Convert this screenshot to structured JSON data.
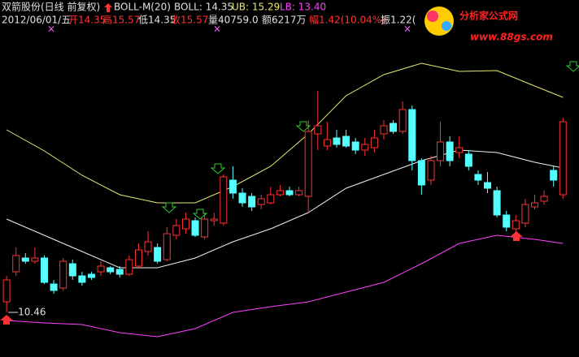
{
  "header": {
    "row1": [
      {
        "text": "双箭股份(日线 前复权)",
        "color": "#e0e0e0"
      },
      {
        "text": "BOLL-M(20)",
        "color": "#e0e0e0"
      },
      {
        "text": "BOLL: 14.35",
        "color": "#e0e0e0"
      },
      {
        "text": "UB: 15.29",
        "color": "#e8e870"
      },
      {
        "text": "LB: 13.40",
        "color": "#ff40ff"
      }
    ],
    "row2": [
      {
        "text": "2012/06/01/五",
        "color": "#e0e0e0"
      },
      {
        "text": "开14.35",
        "color": "#ff3232"
      },
      {
        "text": "高15.57",
        "color": "#ff3232"
      },
      {
        "text": "低14.35",
        "color": "#e0e0e0"
      },
      {
        "text": "收15.57",
        "color": "#ff3232"
      },
      {
        "text": "量40759.0",
        "color": "#e0e0e0"
      },
      {
        "text": "额6217万",
        "color": "#e0e0e0"
      },
      {
        "text": "幅1.42(10.04%)",
        "color": "#ff3232"
      },
      {
        "text": "振1.22(",
        "color": "#e0e0e0"
      }
    ]
  },
  "watermark": {
    "title": "分析家公式网",
    "url": "www.88gs.com"
  },
  "chart_data": {
    "type": "candlestick",
    "open": [
      10.72,
      11.46,
      11.8,
      11.72,
      11.8,
      11.16,
      11.06,
      11.66,
      11.36,
      11.4,
      11.46,
      11.56,
      11.52,
      11.4,
      11.6,
      11.96,
      12.06,
      11.76,
      12.36,
      12.52,
      12.72,
      12.32,
      12.72,
      12.66,
      13.72,
      13.4,
      13.32,
      13.12,
      13.16,
      13.36,
      13.46,
      13.36,
      13.32,
      14.86,
      14.56,
      14.76,
      14.8,
      14.66,
      14.46,
      14.52,
      14.86,
      15.12,
      14.92,
      15.46,
      14.2,
      13.72,
      14.2,
      14.66,
      14.4,
      14.36,
      13.86,
      13.66,
      13.46,
      12.86,
      12.52,
      12.66,
      13.06,
      13.2,
      13.96,
      13.36
    ],
    "high": [
      11.36,
      12.06,
      11.92,
      12.06,
      11.86,
      11.26,
      11.8,
      11.76,
      11.46,
      11.46,
      11.72,
      11.6,
      11.6,
      11.86,
      12.16,
      12.46,
      12.16,
      12.56,
      12.76,
      12.92,
      12.8,
      12.92,
      12.92,
      13.86,
      14.06,
      13.52,
      13.4,
      13.36,
      13.56,
      13.6,
      13.56,
      13.56,
      15.2,
      15.92,
      15.16,
      14.96,
      14.96,
      14.76,
      14.76,
      14.96,
      15.2,
      15.2,
      15.66,
      15.56,
      14.26,
      14.32,
      15.16,
      14.8,
      14.8,
      14.46,
      13.96,
      13.92,
      13.56,
      12.96,
      12.86,
      13.26,
      13.36,
      13.46,
      14.06,
      15.26
    ],
    "low": [
      10.46,
      11.36,
      11.66,
      11.66,
      11.16,
      10.92,
      11.0,
      11.26,
      11.12,
      11.26,
      11.36,
      11.4,
      11.32,
      11.36,
      11.56,
      11.86,
      11.66,
      11.72,
      12.26,
      12.4,
      12.32,
      12.26,
      12.6,
      12.6,
      13.26,
      13.06,
      12.96,
      13.0,
      13.12,
      13.32,
      13.32,
      13.32,
      12.92,
      14.46,
      14.46,
      14.52,
      14.52,
      14.36,
      14.32,
      14.4,
      14.72,
      14.86,
      14.86,
      13.96,
      13.36,
      13.6,
      14.06,
      14.06,
      14.26,
      13.96,
      13.6,
      13.4,
      12.8,
      12.46,
      12.36,
      12.56,
      13.0,
      13.12,
      13.56,
      13.26
    ],
    "close": [
      11.26,
      11.86,
      11.72,
      11.8,
      11.2,
      11.0,
      11.72,
      11.36,
      11.2,
      11.32,
      11.6,
      11.46,
      11.4,
      11.76,
      12.0,
      12.2,
      11.72,
      12.4,
      12.6,
      12.76,
      12.36,
      12.76,
      12.76,
      13.8,
      13.4,
      13.16,
      13.06,
      13.26,
      13.36,
      13.46,
      13.36,
      13.46,
      14.92,
      15.06,
      14.72,
      14.6,
      14.56,
      14.46,
      14.6,
      14.76,
      15.06,
      14.92,
      15.46,
      14.2,
      13.6,
      14.2,
      14.66,
      14.2,
      14.52,
      14.06,
      13.72,
      13.52,
      12.86,
      12.56,
      12.72,
      13.12,
      13.16,
      13.32,
      13.72,
      15.16
    ],
    "up_color": "#ff3232",
    "down_color": "#54ffff",
    "xlim": [
      0.3,
      61.7
    ],
    "ylim": [
      9.36,
      18.16
    ],
    "bands": [
      {
        "color": "#e8e870",
        "x": [
          1,
          5,
          9,
          13,
          17,
          21,
          25,
          29,
          33,
          37,
          41,
          45,
          49,
          53,
          57,
          60
        ],
        "values": [
          14.96,
          14.44,
          13.84,
          13.36,
          13.16,
          13.16,
          13.56,
          14.06,
          14.86,
          15.8,
          16.32,
          16.6,
          16.4,
          16.42,
          16.04,
          15.76
        ]
      },
      {
        "color": "#f0f0f0",
        "x": [
          1,
          5,
          9,
          13,
          17,
          21,
          25,
          29,
          33,
          37,
          41,
          45,
          49,
          53,
          57,
          60
        ],
        "values": [
          12.76,
          12.36,
          11.96,
          11.56,
          11.56,
          11.8,
          12.2,
          12.52,
          12.92,
          13.52,
          13.86,
          14.2,
          14.46,
          14.4,
          14.16,
          14.02
        ]
      },
      {
        "color": "#ff40ff",
        "x": [
          1,
          5,
          9,
          13,
          17,
          21,
          25,
          29,
          33,
          37,
          41,
          45,
          49,
          53,
          57,
          60
        ],
        "values": [
          10.26,
          10.2,
          10.16,
          9.96,
          9.86,
          10.06,
          10.46,
          10.6,
          10.72,
          10.96,
          11.2,
          11.66,
          12.16,
          12.36,
          12.26,
          12.16
        ]
      }
    ],
    "low_label": 10.46
  }
}
